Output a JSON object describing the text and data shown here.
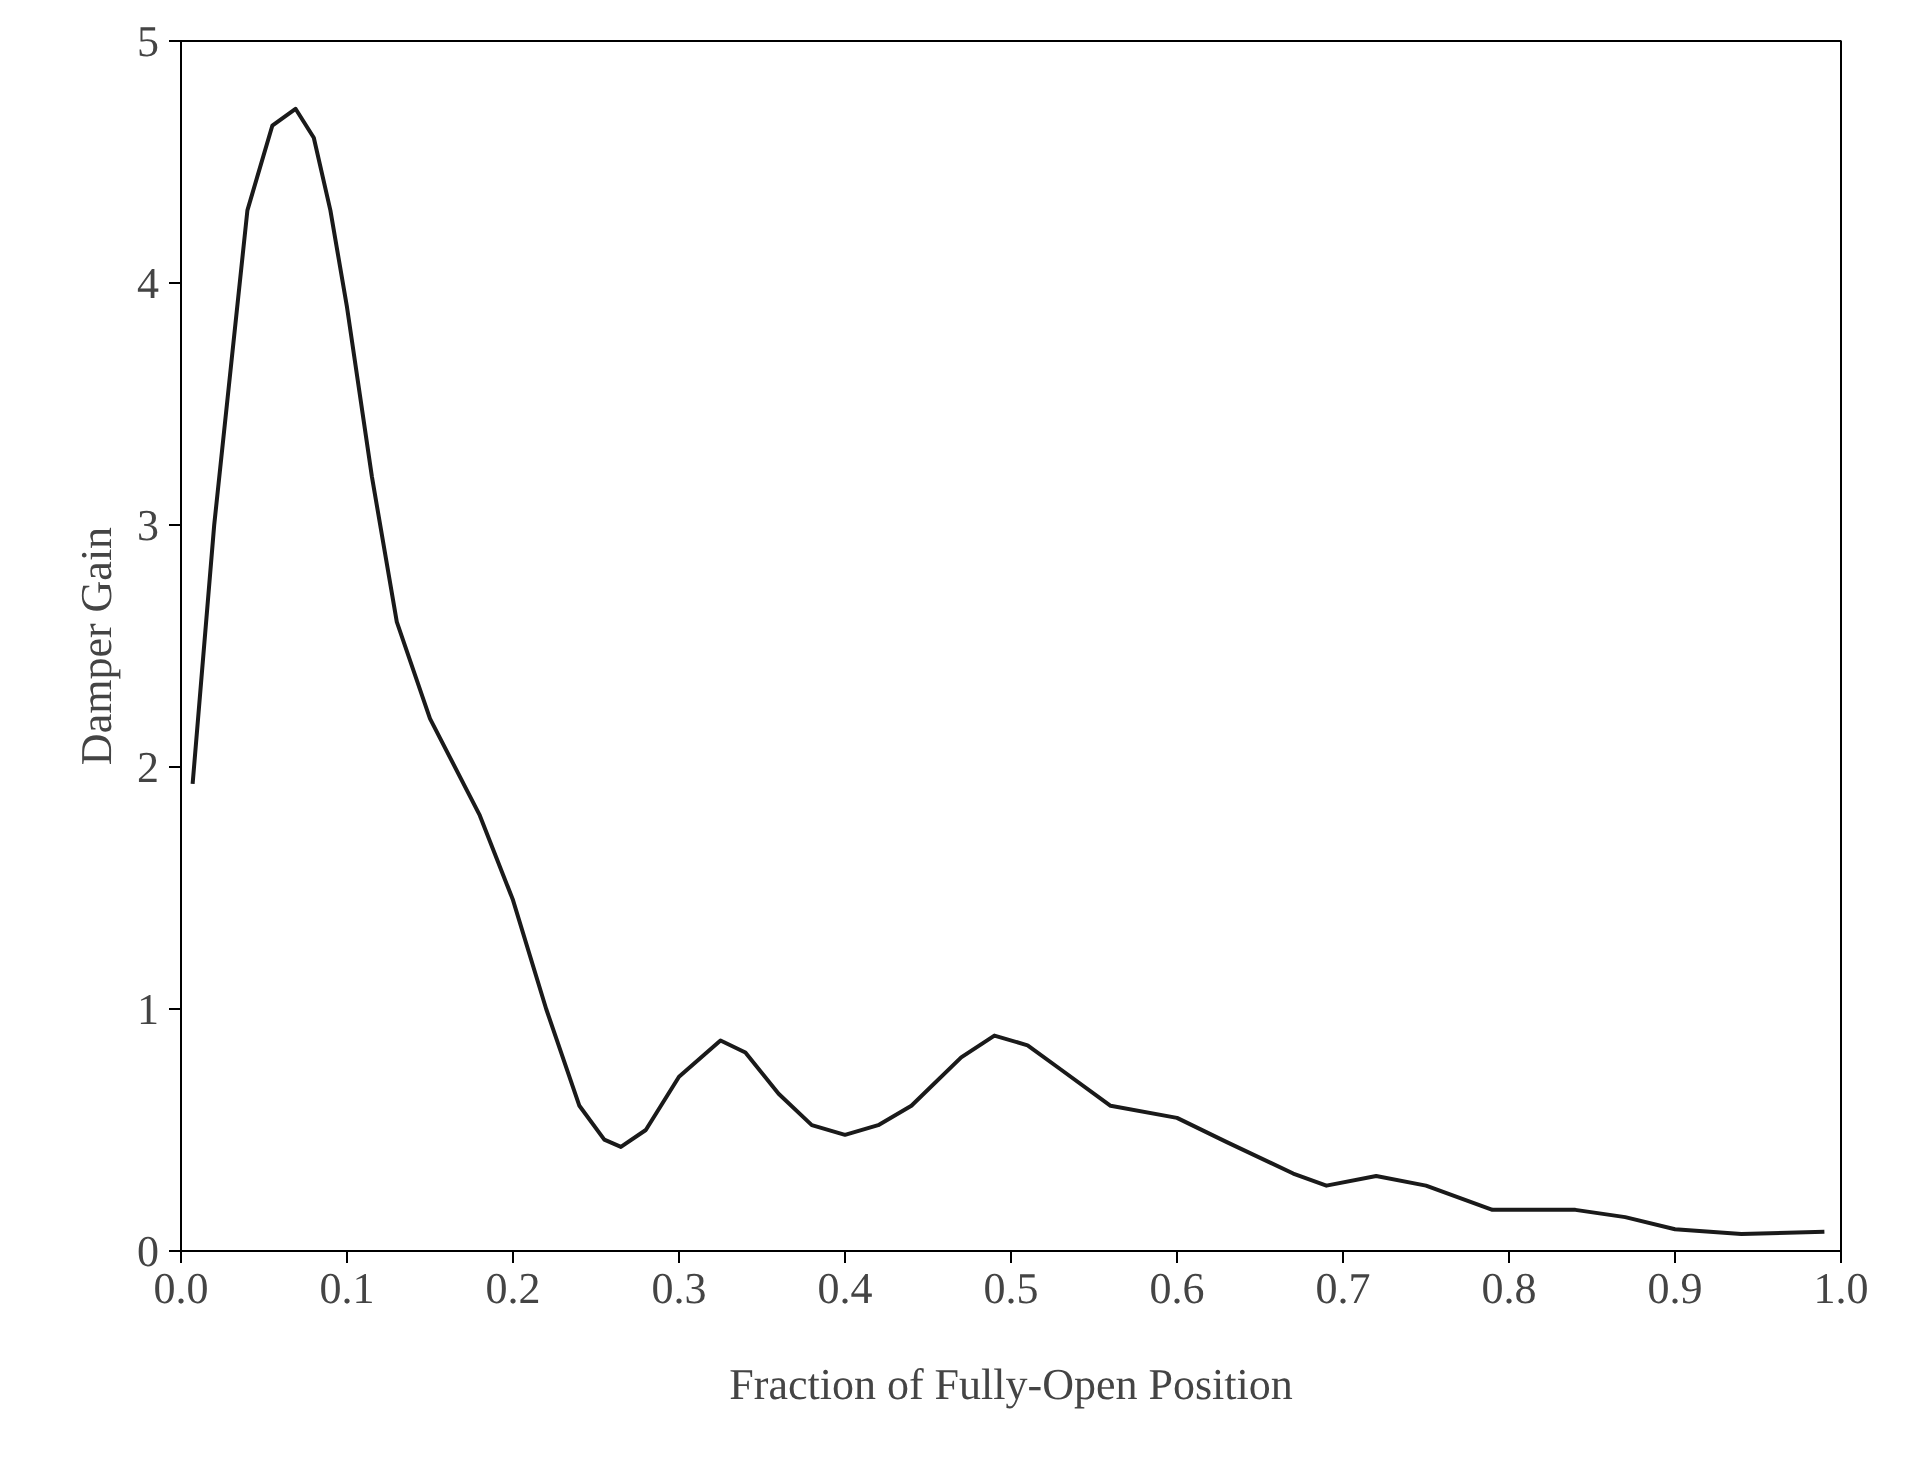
{
  "chart_data": {
    "type": "line",
    "xlabel": "Fraction of Fully-Open Position",
    "ylabel": "Damper Gain",
    "x": [
      0.007,
      0.02,
      0.04,
      0.055,
      0.069,
      0.08,
      0.09,
      0.1,
      0.115,
      0.13,
      0.15,
      0.18,
      0.2,
      0.22,
      0.24,
      0.255,
      0.265,
      0.28,
      0.3,
      0.325,
      0.34,
      0.36,
      0.38,
      0.4,
      0.42,
      0.44,
      0.47,
      0.49,
      0.51,
      0.53,
      0.56,
      0.6,
      0.63,
      0.67,
      0.69,
      0.72,
      0.75,
      0.79,
      0.84,
      0.87,
      0.9,
      0.94,
      0.99
    ],
    "series": [
      {
        "color": "#1a1a1a",
        "values": [
          1.93,
          3.0,
          4.3,
          4.65,
          4.72,
          4.6,
          4.3,
          3.9,
          3.2,
          2.6,
          2.2,
          1.8,
          1.45,
          1.0,
          0.6,
          0.46,
          0.43,
          0.5,
          0.72,
          0.87,
          0.82,
          0.65,
          0.52,
          0.48,
          0.52,
          0.6,
          0.8,
          0.89,
          0.85,
          0.75,
          0.6,
          0.55,
          0.45,
          0.32,
          0.27,
          0.31,
          0.27,
          0.17,
          0.17,
          0.14,
          0.09,
          0.07,
          0.08
        ]
      }
    ],
    "xlim": [
      0,
      1
    ],
    "ylim": [
      0,
      5
    ],
    "xticks": [
      {
        "value": 0,
        "label": "0.0"
      },
      0.1,
      0.2,
      0.3,
      0.4,
      0.5,
      0.6,
      0.7,
      0.8,
      0.9,
      {
        "value": 1,
        "label": "1.0"
      }
    ],
    "yticks": [
      0,
      1,
      2,
      3,
      4,
      5
    ],
    "grid": false,
    "marker": "none",
    "line_style": "solid"
  }
}
